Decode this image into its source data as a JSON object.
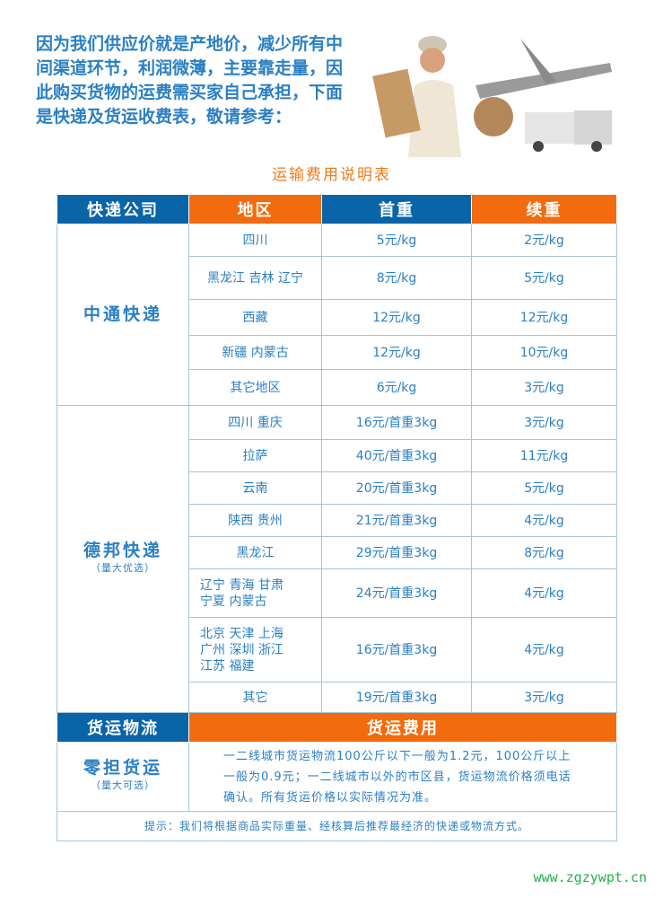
{
  "intro": "因为我们供应价就是产地价，减少所有中间渠道环节，利润微薄，主要靠走量，因此购买货物的运费需买家自己承担，下面是快递及货运收费表，敬请参考：",
  "title": "运输费用说明表",
  "headers": [
    "快递公司",
    "地区",
    "首重",
    "续重"
  ],
  "zhongtong": {
    "name": "中通快递",
    "rows": [
      {
        "region": "四川",
        "first": "5元/kg",
        "extra": "2元/kg"
      },
      {
        "region": "黑龙江 吉林 辽宁",
        "first": "8元/kg",
        "extra": "5元/kg"
      },
      {
        "region": "西藏",
        "first": "12元/kg",
        "extra": "12元/kg"
      },
      {
        "region": "新疆 内蒙古",
        "first": "12元/kg",
        "extra": "10元/kg"
      },
      {
        "region": "其它地区",
        "first": "6元/kg",
        "extra": "3元/kg"
      }
    ]
  },
  "debang": {
    "name": "德邦快递",
    "note": "（量大优选）",
    "rows": [
      {
        "region": "四川 重庆",
        "first": "16元/首重3kg",
        "extra": "3元/kg"
      },
      {
        "region": "拉萨",
        "first": "40元/首重3kg",
        "extra": "11元/kg"
      },
      {
        "region": "云南",
        "first": "20元/首重3kg",
        "extra": "5元/kg"
      },
      {
        "region": "陕西 贵州",
        "first": "21元/首重3kg",
        "extra": "4元/kg"
      },
      {
        "region": "黑龙江",
        "first": "29元/首重3kg",
        "extra": "8元/kg"
      },
      {
        "region": "辽宁 青海 甘肃\n宁夏 内蒙古",
        "first": "24元/首重3kg",
        "extra": "4元/kg"
      },
      {
        "region": "北京 天津 上海\n广州 深圳 浙江\n江苏 福建",
        "first": "16元/首重3kg",
        "extra": "4元/kg"
      },
      {
        "region": "其它",
        "first": "19元/首重3kg",
        "extra": "3元/kg"
      }
    ]
  },
  "freight": {
    "header_left": "货运物流",
    "header_right": "货运费用",
    "name": "零担货运",
    "note": "（量大可选）",
    "desc": "一二线城市货运物流100公斤以下一般为1.2元，100公斤以上一般为0.9元；一二线城市以外的市区县，货运物流价格须电话确认。所有货运价格以实际情况为准。"
  },
  "tip": "提示：我们将根据商品实际重量、经核算后推荐最经济的快递或物流方式。",
  "watermark": "www.zgzywpt.cn"
}
